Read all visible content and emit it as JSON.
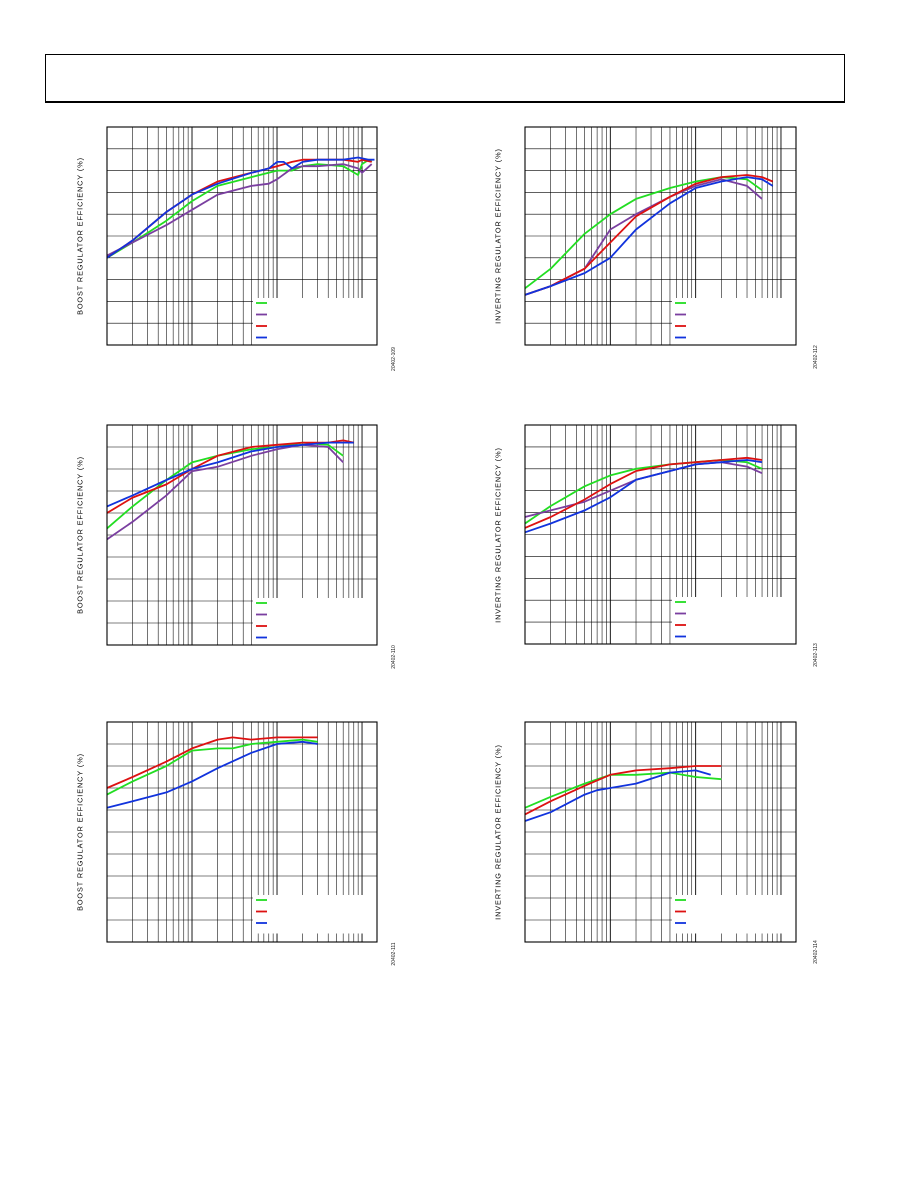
{
  "page": {
    "header": ""
  },
  "chart_data": [
    {
      "type": "line",
      "ylabel": "BOOST REGULATOR EFFICIENCY (%)",
      "figure_id": "20402-109",
      "xscale": "log",
      "grid": true,
      "legend": "bottom-right",
      "series": [
        {
          "color": "#22dd22",
          "x": [
            0.1,
            0.2,
            0.5,
            1,
            2,
            5,
            10,
            15,
            20,
            30,
            60,
            90,
            100,
            120,
            130
          ],
          "y": [
            40,
            47,
            57,
            66,
            73,
            77,
            80,
            80,
            82,
            83,
            82,
            78,
            83,
            85,
            84
          ]
        },
        {
          "color": "#7a3fa0",
          "x": [
            0.1,
            0.2,
            0.5,
            1,
            2,
            5,
            8,
            10,
            15,
            20,
            30,
            60,
            90,
            100,
            130
          ],
          "y": [
            41,
            47,
            55,
            62,
            69,
            73,
            74,
            76,
            81,
            82,
            82,
            83,
            81,
            79,
            83
          ]
        },
        {
          "color": "#dd1111",
          "x": [
            0.1,
            0.2,
            0.5,
            1,
            2,
            5,
            8,
            10,
            15,
            20,
            30,
            60,
            90,
            100,
            130
          ],
          "y": [
            40,
            48,
            61,
            69,
            75,
            79,
            81,
            82,
            84,
            85,
            85,
            85,
            84,
            85,
            84
          ]
        },
        {
          "color": "#1133dd",
          "x": [
            0.1,
            0.2,
            0.5,
            1,
            2,
            5,
            8,
            10,
            12,
            15,
            20,
            30,
            60,
            90,
            120,
            140
          ],
          "y": [
            40,
            48,
            61,
            69,
            74,
            79,
            81,
            84,
            84,
            81,
            84,
            85,
            85,
            86,
            85,
            85
          ]
        }
      ]
    },
    {
      "type": "line",
      "ylabel": "INVERTING REGULATOR EFFICIENCY (%)",
      "figure_id": "20402-112",
      "xscale": "log",
      "grid": true,
      "legend": "bottom-right",
      "series": [
        {
          "color": "#22dd22",
          "x": [
            0.1,
            0.2,
            0.5,
            1,
            2,
            5,
            10,
            20,
            40,
            60
          ],
          "y": [
            26,
            35,
            51,
            60,
            67,
            72,
            75,
            77,
            76,
            71
          ]
        },
        {
          "color": "#7a3fa0",
          "x": [
            0.1,
            0.2,
            0.5,
            1,
            2,
            5,
            10,
            20,
            40,
            60
          ],
          "y": [
            23,
            27,
            35,
            53,
            60,
            68,
            73,
            76,
            73,
            67
          ]
        },
        {
          "color": "#dd1111",
          "x": [
            0.1,
            0.2,
            0.5,
            1,
            2,
            5,
            10,
            20,
            40,
            60,
            80
          ],
          "y": [
            23,
            27,
            35,
            47,
            59,
            68,
            74,
            77,
            78,
            77,
            75
          ]
        },
        {
          "color": "#1133dd",
          "x": [
            0.1,
            0.2,
            0.5,
            1,
            2,
            5,
            10,
            20,
            40,
            60,
            80
          ],
          "y": [
            23,
            27,
            33,
            40,
            53,
            65,
            72,
            75,
            77,
            76,
            73
          ]
        }
      ]
    },
    {
      "type": "line",
      "ylabel": "BOOST REGULATOR EFFICIENCY (%)",
      "figure_id": "20402-110",
      "xscale": "log",
      "grid": true,
      "legend": "bottom-right",
      "series": [
        {
          "color": "#22dd22",
          "x": [
            0.1,
            0.2,
            0.5,
            1,
            2,
            5,
            10,
            20,
            40,
            60
          ],
          "y": [
            53,
            63,
            75,
            83,
            86,
            89,
            90,
            92,
            91,
            86
          ]
        },
        {
          "color": "#7a3fa0",
          "x": [
            0.1,
            0.2,
            0.5,
            1,
            2,
            5,
            10,
            20,
            40,
            60
          ],
          "y": [
            48,
            56,
            68,
            79,
            81,
            86,
            89,
            91,
            90,
            83
          ]
        },
        {
          "color": "#dd1111",
          "x": [
            0.1,
            0.2,
            0.5,
            1,
            2,
            5,
            10,
            20,
            40,
            60,
            80
          ],
          "y": [
            60,
            67,
            73,
            80,
            86,
            90,
            91,
            92,
            92,
            93,
            92
          ]
        },
        {
          "color": "#1133dd",
          "x": [
            0.1,
            0.2,
            0.5,
            1,
            2,
            5,
            10,
            20,
            40,
            60,
            80
          ],
          "y": [
            63,
            68,
            75,
            80,
            83,
            88,
            90,
            91,
            92,
            92,
            92
          ]
        }
      ]
    },
    {
      "type": "line",
      "ylabel": "INVERTING REGULATOR EFFICIENCY (%)",
      "figure_id": "20402-113",
      "xscale": "log",
      "grid": true,
      "legend": "bottom-right",
      "series": [
        {
          "color": "#22dd22",
          "x": [
            0.1,
            0.2,
            0.5,
            1,
            2,
            5,
            10,
            20,
            40,
            60
          ],
          "y": [
            55,
            63,
            72,
            77,
            80,
            82,
            83,
            84,
            83,
            80
          ]
        },
        {
          "color": "#7a3fa0",
          "x": [
            0.1,
            0.2,
            0.5,
            1,
            2,
            5,
            10,
            20,
            40,
            60
          ],
          "y": [
            58,
            61,
            65,
            70,
            75,
            79,
            82,
            83,
            81,
            78
          ]
        },
        {
          "color": "#dd1111",
          "x": [
            0.1,
            0.2,
            0.5,
            1,
            2,
            5,
            10,
            20,
            40,
            60
          ],
          "y": [
            53,
            58,
            66,
            73,
            79,
            82,
            83,
            84,
            85,
            84
          ]
        },
        {
          "color": "#1133dd",
          "x": [
            0.1,
            0.2,
            0.5,
            1,
            2,
            5,
            10,
            20,
            40,
            60
          ],
          "y": [
            51,
            55,
            61,
            67,
            75,
            79,
            82,
            83,
            84,
            83
          ]
        }
      ]
    },
    {
      "type": "line",
      "ylabel": "BOOST REGULATOR EFFICIENCY (%)",
      "figure_id": "20402-111",
      "xscale": "log",
      "grid": true,
      "legend": "bottom-right",
      "series": [
        {
          "color": "#22dd22",
          "x": [
            0.1,
            0.2,
            0.5,
            1,
            2,
            3,
            5,
            10,
            20,
            30
          ],
          "y": [
            67,
            73,
            80,
            87,
            88,
            88,
            90,
            91,
            92,
            91
          ]
        },
        {
          "color": "#dd1111",
          "x": [
            0.1,
            0.2,
            0.5,
            1,
            2,
            3,
            5,
            10,
            20,
            30
          ],
          "y": [
            70,
            75,
            82,
            88,
            92,
            93,
            92,
            93,
            93,
            93
          ]
        },
        {
          "color": "#1133dd",
          "x": [
            0.1,
            0.2,
            0.5,
            1,
            2,
            5,
            10,
            20,
            30
          ],
          "y": [
            61,
            64,
            68,
            73,
            79,
            86,
            90,
            91,
            90
          ]
        }
      ]
    },
    {
      "type": "line",
      "ylabel": "INVERTING REGULATOR EFFICIENCY (%)",
      "figure_id": "20402-114",
      "xscale": "log",
      "grid": true,
      "legend": "bottom-right",
      "series": [
        {
          "color": "#22dd22",
          "x": [
            0.1,
            0.2,
            0.5,
            1,
            2,
            5,
            10,
            20
          ],
          "y": [
            61,
            66,
            72,
            76,
            76,
            77,
            75,
            74
          ]
        },
        {
          "color": "#dd1111",
          "x": [
            0.1,
            0.2,
            0.5,
            1,
            2,
            5,
            10,
            20
          ],
          "y": [
            58,
            64,
            71,
            76,
            78,
            79,
            80,
            80
          ]
        },
        {
          "color": "#1133dd",
          "x": [
            0.1,
            0.2,
            0.5,
            0.7,
            1,
            2,
            5,
            10,
            15
          ],
          "y": [
            55,
            59,
            67,
            69,
            70,
            72,
            77,
            78,
            76
          ]
        }
      ]
    }
  ]
}
